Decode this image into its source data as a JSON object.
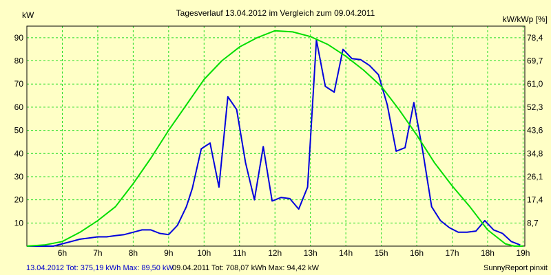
{
  "chart_data": {
    "type": "line",
    "title": "Tagesverlauf 13.04.2012 im Vergleich zum 09.04.2011",
    "ylabel_left": "kW",
    "ylabel_right": "kW/kWp [%]",
    "xlim": [
      5,
      19.05
    ],
    "ylim": [
      0,
      95
    ],
    "x_ticks": [
      {
        "v": 6,
        "label": "6h"
      },
      {
        "v": 7,
        "label": "7h"
      },
      {
        "v": 8,
        "label": "8h"
      },
      {
        "v": 9,
        "label": "9h"
      },
      {
        "v": 10,
        "label": "10h"
      },
      {
        "v": 11,
        "label": "11h"
      },
      {
        "v": 12,
        "label": "12h"
      },
      {
        "v": 13,
        "label": "13h"
      },
      {
        "v": 14,
        "label": "14h"
      },
      {
        "v": 15,
        "label": "15h"
      },
      {
        "v": 16,
        "label": "16h"
      },
      {
        "v": 17,
        "label": "17h"
      },
      {
        "v": 18,
        "label": "18h"
      },
      {
        "v": 19,
        "label": "19h"
      }
    ],
    "y_ticks": [
      10,
      20,
      30,
      40,
      50,
      60,
      70,
      80,
      90
    ],
    "y_ticks_right": [
      "8,7",
      "17,4",
      "26,1",
      "34,8",
      "43,6",
      "52,3",
      "61,0",
      "69,7",
      "78,4"
    ],
    "grid": true,
    "series": [
      {
        "color": "#0000dd",
        "x": [
          5.0,
          5.5,
          5.75,
          6.0,
          6.25,
          6.5,
          6.75,
          7.0,
          7.25,
          7.5,
          7.75,
          8.0,
          8.25,
          8.5,
          8.75,
          9.0,
          9.25,
          9.5,
          9.67,
          9.92,
          10.17,
          10.42,
          10.67,
          10.92,
          11.17,
          11.42,
          11.67,
          11.92,
          12.17,
          12.42,
          12.67,
          12.92,
          13.17,
          13.42,
          13.67,
          13.92,
          14.17,
          14.42,
          14.67,
          14.92,
          15.17,
          15.42,
          15.67,
          15.92,
          16.17,
          16.42,
          16.67,
          16.92,
          17.17,
          17.42,
          17.67,
          17.92,
          18.17,
          18.42,
          18.67,
          18.92
        ],
        "y": [
          0,
          0,
          0,
          1,
          2,
          3,
          3.5,
          4,
          4,
          4.5,
          5,
          6,
          7,
          7,
          5.5,
          5,
          9,
          17,
          25,
          42,
          44.5,
          25.5,
          64.5,
          59,
          36,
          20,
          43,
          19.5,
          21,
          20.5,
          16,
          25.5,
          89,
          69,
          66.5,
          85,
          81,
          80.5,
          78,
          74,
          61,
          41,
          42.5,
          62,
          41,
          17,
          11,
          8,
          6,
          6,
          6.5,
          11,
          7,
          5.5,
          2,
          0.5
        ]
      },
      {
        "color": "#00dd00",
        "x": [
          5.0,
          5.5,
          6.0,
          6.5,
          7.0,
          7.5,
          8.0,
          8.5,
          9.0,
          9.5,
          10.0,
          10.5,
          11.0,
          11.5,
          12.0,
          12.5,
          13.0,
          13.5,
          14.0,
          14.5,
          15.0,
          15.5,
          16.0,
          16.5,
          17.0,
          17.5,
          18.0,
          18.5,
          18.75,
          19.0
        ],
        "y": [
          0,
          0.5,
          2,
          6,
          11,
          17,
          27,
          38,
          50,
          61,
          72,
          80,
          86,
          90,
          93,
          92.5,
          90.5,
          87,
          82,
          76,
          69,
          59,
          48,
          36,
          26,
          17,
          7,
          1,
          0,
          0
        ]
      }
    ]
  },
  "footer": {
    "left": "13.04.2012 Tot: 375,19 kWh Max: 89,50 kW",
    "middle": "09.04.2011 Tot: 708,07 kWh Max: 94,42 kW",
    "right": "SunnyReport pinxit"
  },
  "colors": {
    "background": "#ffffc6",
    "grid": "#22dd22",
    "frame": "#000000"
  }
}
